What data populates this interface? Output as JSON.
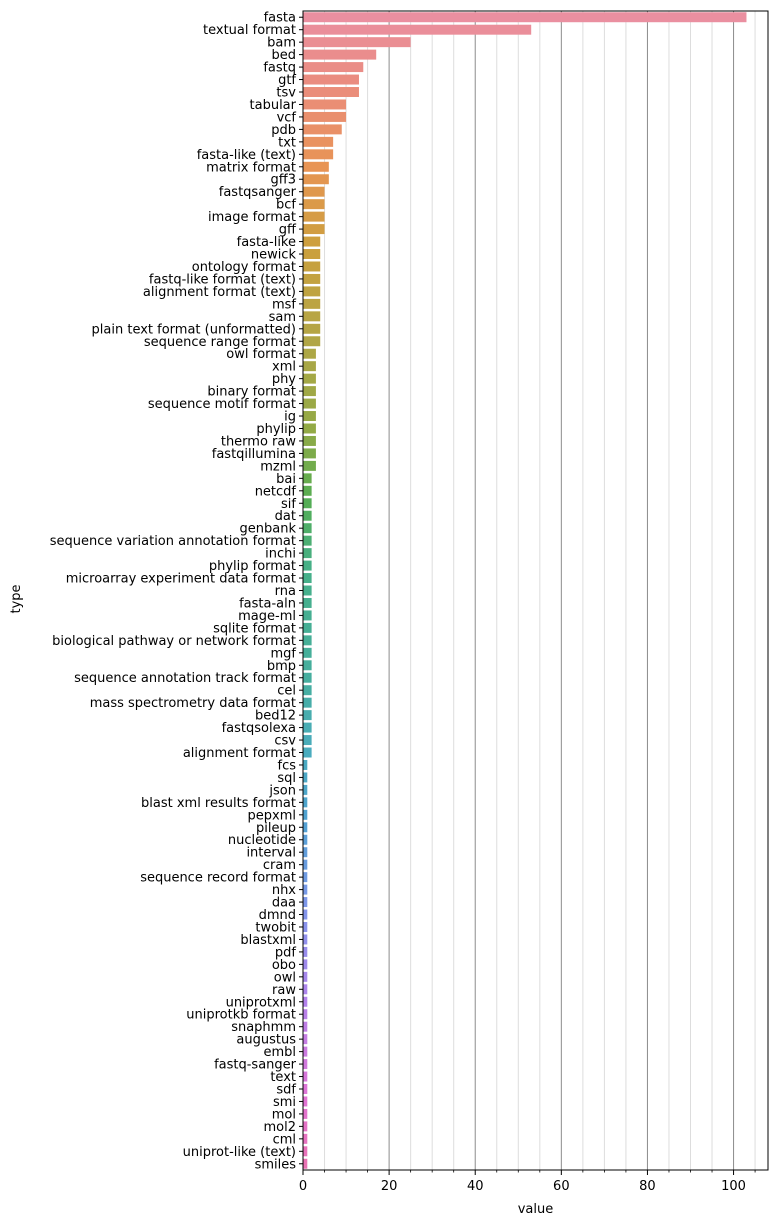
{
  "chart_data": {
    "type": "bar",
    "orientation": "horizontal",
    "title": "",
    "xlabel": "value",
    "ylabel": "type",
    "xlim": [
      0,
      108
    ],
    "xticks": [
      0,
      20,
      40,
      60,
      80,
      100
    ],
    "grid": "vertical major and minor lines",
    "categories": [
      "fasta",
      "textual format",
      "bam",
      "bed",
      "fastq",
      "gtf",
      "tsv",
      "tabular",
      "vcf",
      "pdb",
      "txt",
      "fasta-like (text)",
      "matrix format",
      "gff3",
      "fastqsanger",
      "bcf",
      "image format",
      "gff",
      "fasta-like",
      "newick",
      "ontology format",
      "fastq-like format (text)",
      "alignment format (text)",
      "msf",
      "sam",
      "plain text format (unformatted)",
      "sequence range format",
      "owl format",
      "xml",
      "phy",
      "binary format",
      "sequence motif format",
      "ig",
      "phylip",
      "thermo raw",
      "fastqillumina",
      "mzml",
      "bai",
      "netcdf",
      "sif",
      "dat",
      "genbank",
      "sequence variation annotation format",
      "inchi",
      "phylip format",
      "microarray experiment data format",
      "rna",
      "fasta-aln",
      "mage-ml",
      "sqlite format",
      "biological pathway or network format",
      "mgf",
      "bmp",
      "sequence annotation track format",
      "cel",
      "mass spectrometry data format",
      "bed12",
      "fastqsolexa",
      "csv",
      "alignment format",
      "fcs",
      "sql",
      "json",
      "blast xml results format",
      "pepxml",
      "pileup",
      "nucleotide",
      "interval",
      "cram",
      "sequence record format",
      "nhx",
      "daa",
      "dmnd",
      "twobit",
      "blastxml",
      "pdf",
      "obo",
      "owl",
      "raw",
      "uniprotxml",
      "uniprotkb format",
      "snaphmm",
      "augustus",
      "embl",
      "fastq-sanger",
      "text",
      "sdf",
      "smi",
      "mol",
      "mol2",
      "cml",
      "uniprot-like (text)",
      "smiles"
    ],
    "values": [
      103,
      53,
      25,
      17,
      14,
      13,
      13,
      10,
      10,
      9,
      7,
      7,
      6,
      6,
      5,
      5,
      5,
      5,
      4,
      4,
      4,
      4,
      4,
      4,
      4,
      4,
      4,
      3,
      3,
      3,
      3,
      3,
      3,
      3,
      3,
      3,
      3,
      2,
      2,
      2,
      2,
      2,
      2,
      2,
      2,
      2,
      2,
      2,
      2,
      2,
      2,
      2,
      2,
      2,
      2,
      2,
      2,
      2,
      2,
      2,
      1,
      1,
      1,
      1,
      1,
      1,
      1,
      1,
      1,
      1,
      1,
      1,
      1,
      1,
      1,
      1,
      1,
      1,
      1,
      1,
      1,
      1,
      1,
      1,
      1,
      1,
      1,
      1,
      1,
      1,
      1,
      1,
      1
    ]
  }
}
